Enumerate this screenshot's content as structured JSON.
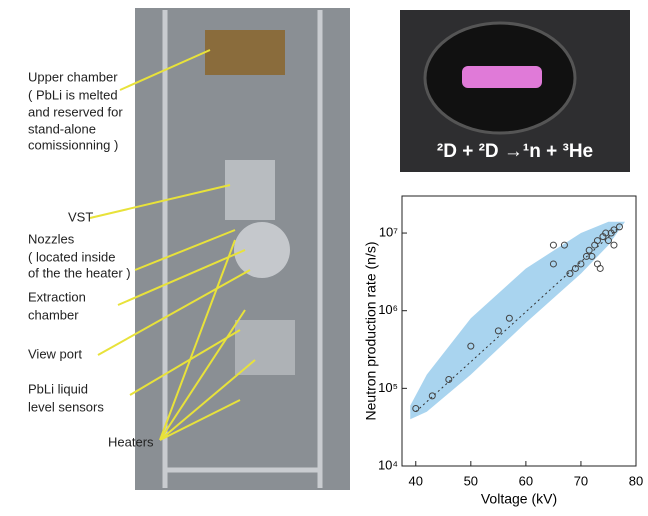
{
  "labels": {
    "upper": [
      "Upper chamber",
      "( PbLi is melted",
      "and reserved for",
      "stand-alone",
      "comissionning )"
    ],
    "vst": "VST",
    "nozzles": [
      "Nozzles",
      "( located inside",
      "of the the heater )"
    ],
    "extraction": [
      "Extraction",
      "chamber"
    ],
    "viewport": "View port",
    "sensors": [
      "PbLi liquid",
      "level sensors"
    ],
    "heaters": "Heaters"
  },
  "equation": "²D + ²D →¹n + ³He",
  "chart_data": {
    "type": "scatter",
    "x_label": "Voltage (kV)",
    "y_label": "Neutron production rate (n/s)",
    "xlim": [
      37.5,
      80
    ],
    "xticks": [
      40,
      50,
      60,
      70,
      80
    ],
    "ylim": [
      10000,
      30000000
    ],
    "log_y": true,
    "yticks": [
      {
        "value": 10000,
        "label": "10⁴"
      },
      {
        "value": 100000,
        "label": "10⁵"
      },
      {
        "value": 1000000,
        "label": "10⁶"
      },
      {
        "value": 10000000,
        "label": "10⁷"
      }
    ],
    "series": [
      {
        "color": "#444444",
        "x": [
          40,
          43,
          46,
          50,
          55,
          57,
          65,
          65,
          67,
          68,
          69,
          70,
          71,
          71.5,
          72,
          72.5,
          73,
          73,
          73.5,
          74,
          74.5,
          75,
          75.5,
          76,
          76,
          77
        ],
        "values": [
          55000,
          80000,
          130000,
          350000,
          550000,
          800000,
          7000000,
          4000000,
          7000000,
          3000000,
          3500000,
          4000000,
          5000000,
          6000000,
          5000000,
          7000000,
          8000000,
          4000000,
          3500000,
          9000000,
          10000000,
          8000000,
          10000000,
          11000000,
          7000000,
          12000000
        ]
      }
    ],
    "trend_line": {
      "color": "#333333",
      "x": [
        40,
        77
      ],
      "values": [
        50000,
        12000000
      ]
    },
    "band": {
      "color": "#a9d4ef",
      "x": [
        39,
        42,
        50,
        60,
        70,
        75,
        78
      ],
      "lower": [
        40000,
        50000,
        150000,
        700000,
        3000000,
        7000000,
        14000000
      ],
      "upper": [
        60000,
        150000,
        800000,
        3500000,
        10000000,
        14000000,
        14000000
      ]
    }
  }
}
